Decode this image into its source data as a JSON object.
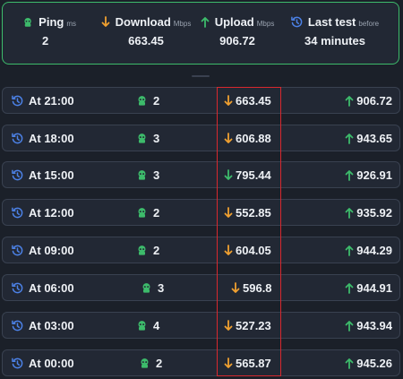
{
  "summary": {
    "ping": {
      "label": "Ping",
      "unit": "ms",
      "value": "2"
    },
    "download": {
      "label": "Download",
      "unit": "Mbps",
      "value": "663.45"
    },
    "upload": {
      "label": "Upload",
      "unit": "Mbps",
      "value": "906.72"
    },
    "last_test": {
      "label": "Last test",
      "unit": "before",
      "value": "34 minutes"
    }
  },
  "colors": {
    "green": "#3dbb6b",
    "orange": "#f0a030",
    "blue": "#4c82e8",
    "highlight": "#d8282e"
  },
  "icons": {
    "ping": "ping-icon",
    "download": "arrow-down-icon",
    "upload": "arrow-up-icon",
    "history": "history-icon"
  },
  "rows": [
    {
      "time": "At 21:00",
      "ping": "2",
      "download": "663.45",
      "download_dir": "down-orange",
      "upload": "906.72"
    },
    {
      "time": "At 18:00",
      "ping": "3",
      "download": "606.88",
      "download_dir": "down-orange",
      "upload": "943.65"
    },
    {
      "time": "At 15:00",
      "ping": "3",
      "download": "795.44",
      "download_dir": "down-green",
      "upload": "926.91"
    },
    {
      "time": "At 12:00",
      "ping": "2",
      "download": "552.85",
      "download_dir": "down-orange",
      "upload": "935.92"
    },
    {
      "time": "At 09:00",
      "ping": "2",
      "download": "604.05",
      "download_dir": "down-orange",
      "upload": "944.29"
    },
    {
      "time": "At 06:00",
      "ping": "3",
      "download": "596.8",
      "download_dir": "down-orange",
      "upload": "944.91"
    },
    {
      "time": "At 03:00",
      "ping": "4",
      "download": "527.23",
      "download_dir": "down-orange",
      "upload": "943.94"
    },
    {
      "time": "At 00:00",
      "ping": "2",
      "download": "565.87",
      "download_dir": "down-orange",
      "upload": "945.26"
    }
  ]
}
